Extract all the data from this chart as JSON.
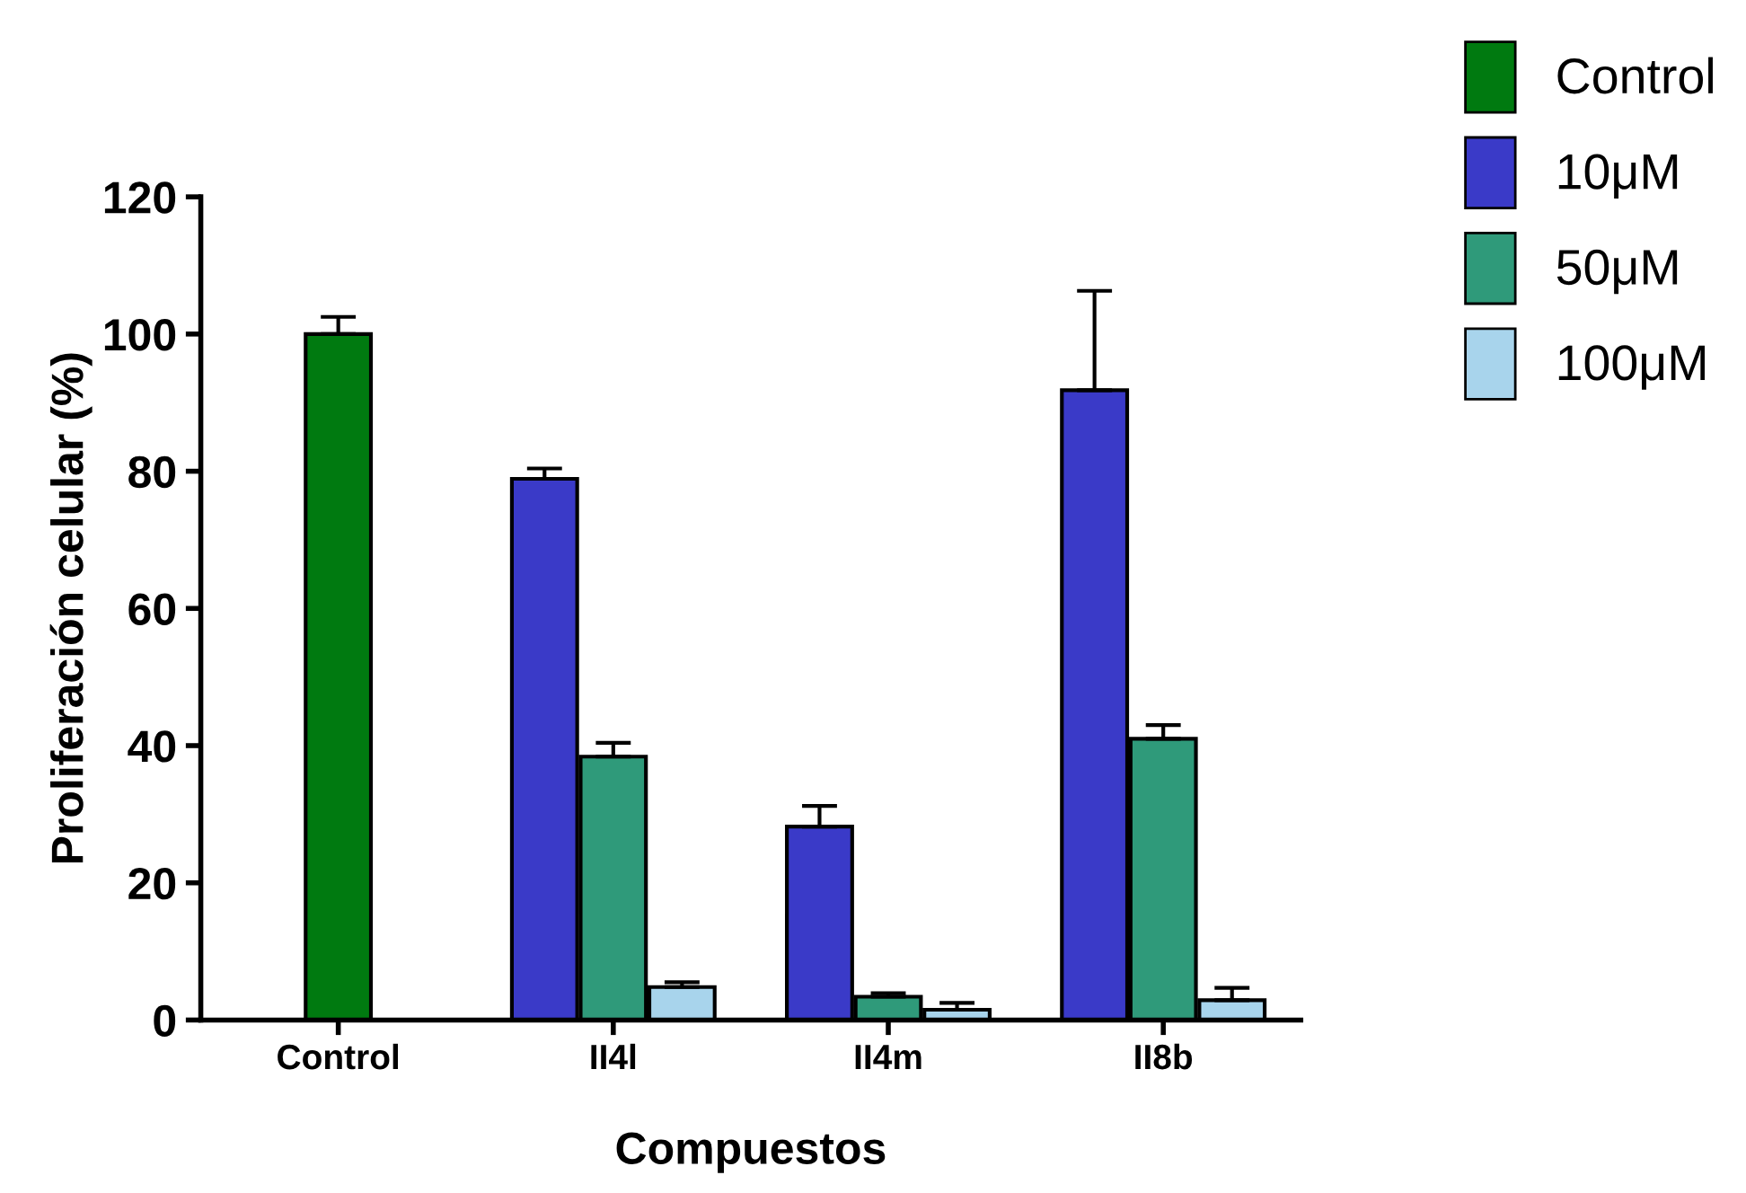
{
  "chart_data": {
    "type": "bar",
    "xlabel": "Compuestos",
    "ylabel": "Proliferación celular (%)",
    "categories": [
      "Control",
      "II4l",
      "II4m",
      "II8b"
    ],
    "series": [
      {
        "name": "Control",
        "color": "#007a10",
        "values": [
          100,
          null,
          null,
          null
        ],
        "errors": [
          2.5,
          null,
          null,
          null
        ]
      },
      {
        "name": "10μM",
        "color": "#3a3ac8",
        "values": [
          null,
          78.9,
          28.2,
          91.8
        ],
        "errors": [
          null,
          1.5,
          3,
          14.5
        ]
      },
      {
        "name": "50μM",
        "color": "#2f9a7a",
        "values": [
          null,
          38.4,
          3.4,
          41
        ],
        "errors": [
          null,
          2,
          0.5,
          2
        ]
      },
      {
        "name": "100μM",
        "color": "#a8d4ec",
        "values": [
          null,
          4.8,
          1.5,
          2.9
        ],
        "errors": [
          null,
          0.7,
          1,
          1.8
        ]
      }
    ],
    "ylim": [
      0,
      120
    ],
    "yticks": [
      0,
      20,
      40,
      60,
      80,
      100,
      120
    ],
    "legend": "top right",
    "grid": false
  }
}
